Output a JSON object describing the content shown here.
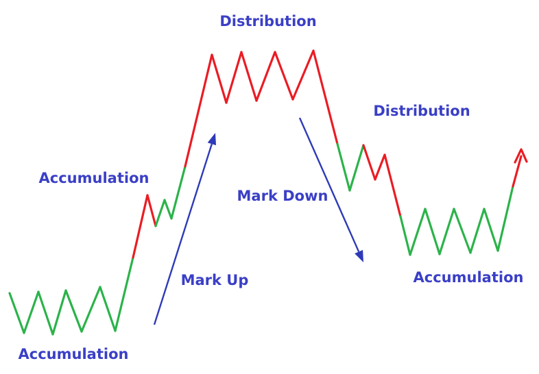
{
  "colors": {
    "up": "#2bb34a",
    "down": "#ea1c24",
    "arrow": "#2e3ab8",
    "label": "#3a3fc6"
  },
  "labels": {
    "accumulation_bottom": "Accumulation",
    "accumulation_mid": "Accumulation",
    "mark_up": "Mark Up",
    "distribution_top": "Distribution",
    "mark_down": "Mark Down",
    "distribution_mid": "Distribution",
    "accumulation_right": "Accumulation"
  }
}
